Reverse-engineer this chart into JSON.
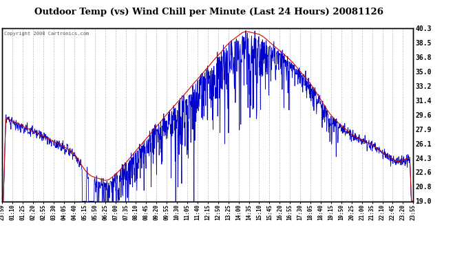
{
  "title": "Outdoor Temp (vs) Wind Chill per Minute (Last 24 Hours) 20081126",
  "copyright": "Copyright 2008 Cartronics.com",
  "yticks": [
    19.0,
    20.8,
    22.6,
    24.3,
    26.1,
    27.9,
    29.6,
    31.4,
    33.2,
    35.0,
    36.8,
    38.5,
    40.3
  ],
  "ymin": 19.0,
  "ymax": 40.3,
  "bg_color": "#ffffff",
  "grid_color": "#bbbbbb",
  "line_color_temp": "#cc0000",
  "line_color_chill": "#0000cc",
  "xtick_labels": [
    "23:59",
    "01:10",
    "01:25",
    "02:20",
    "02:55",
    "03:30",
    "04:05",
    "04:40",
    "05:15",
    "05:50",
    "06:25",
    "07:00",
    "07:35",
    "08:10",
    "08:45",
    "09:20",
    "09:55",
    "10:30",
    "11:05",
    "11:40",
    "12:15",
    "12:50",
    "13:25",
    "14:00",
    "14:35",
    "15:10",
    "15:45",
    "16:20",
    "16:55",
    "17:30",
    "18:05",
    "18:40",
    "19:15",
    "19:50",
    "20:25",
    "21:00",
    "21:35",
    "22:10",
    "22:45",
    "23:20",
    "23:55"
  ]
}
